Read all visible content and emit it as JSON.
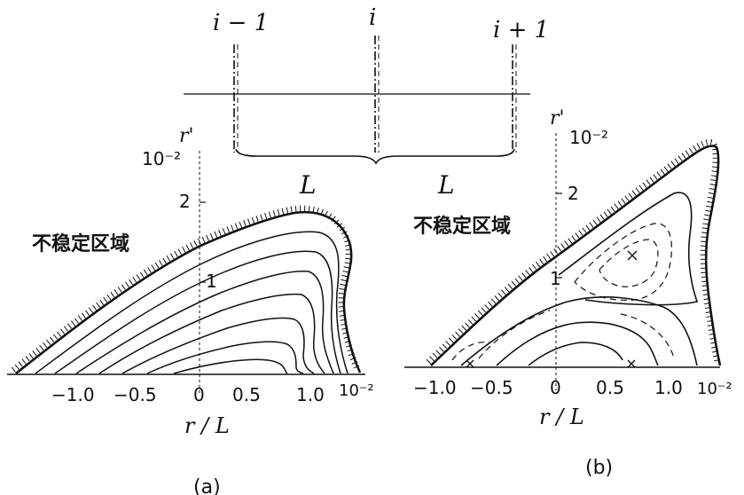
{
  "top": {
    "node_left": "i − 1",
    "node_mid": "i",
    "node_right": "i + 1",
    "spacing_left": "L",
    "spacing_right": "L"
  },
  "panel_a": {
    "y_axis_label": "r'",
    "y_scale": "10⁻²",
    "y_ticks": [
      "2",
      "1"
    ],
    "x_ticks": [
      "−1.0",
      "−0.5",
      "0",
      "0.5",
      "1.0"
    ],
    "x_scale": "10⁻²",
    "x_axis_label": "r / L",
    "region_label": "不稳定区域",
    "caption": "(a)"
  },
  "panel_b": {
    "y_axis_label": "r'",
    "y_scale": "10⁻²",
    "y_ticks": [
      "2",
      "1"
    ],
    "x_ticks": [
      "−1.0",
      "−0.5",
      "0",
      "0.5",
      "1.0"
    ],
    "x_scale": "10⁻²",
    "x_axis_label": "r / L",
    "region_label": "不稳定区域",
    "caption": "(b)"
  }
}
